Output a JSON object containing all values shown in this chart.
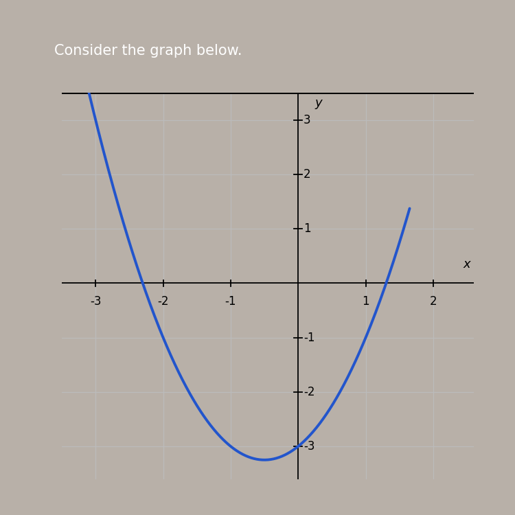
{
  "title": "Consider the graph below.",
  "title_bg_color": "#b03030",
  "title_text_color": "#ffffff",
  "curve_color": "#2255cc",
  "curve_linewidth": 2.8,
  "x_label": "x",
  "y_label": "y",
  "xlim": [
    -3.5,
    2.6
  ],
  "ylim": [
    -3.6,
    3.5
  ],
  "x_ticks": [
    -3,
    -2,
    -1,
    1,
    2
  ],
  "y_ticks": [
    -3,
    -2,
    -1,
    1,
    2,
    3
  ],
  "x_tick_labels": [
    "-3",
    "-2",
    "-1",
    "1",
    "2"
  ],
  "y_tick_labels": [
    "-3",
    "-2",
    "-1",
    "1",
    "2",
    "3"
  ],
  "grid_color": "#bbbbbb",
  "outer_bg": "#b8b0a8",
  "card_bg": "#e8e4dc",
  "plot_bg": "#f0ece4",
  "figsize": [
    7.5,
    7.5
  ],
  "dpi": 100,
  "curve_x_start": -3.3,
  "curve_x_end": 1.65
}
